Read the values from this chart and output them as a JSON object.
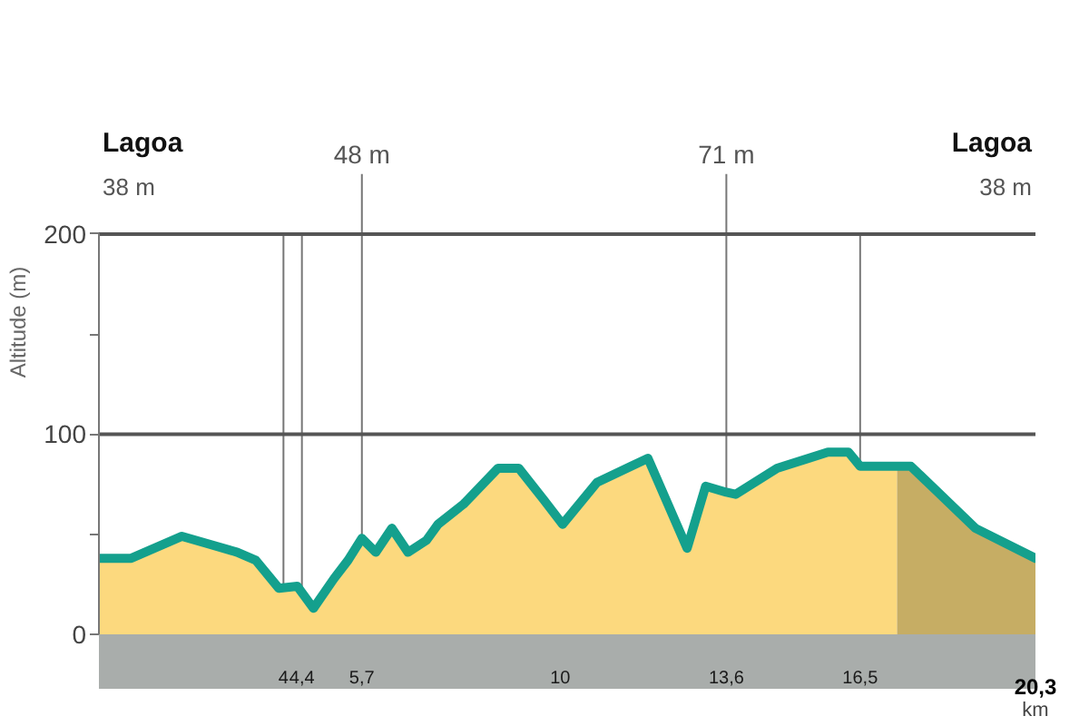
{
  "chart_data": {
    "type": "area",
    "ylabel": "Altitude (m)",
    "xlabel": "km",
    "xlim": [
      0,
      20.3
    ],
    "xticks": [
      4,
      {
        "value": 4.4,
        "label": "4,4"
      },
      {
        "value": 5.7,
        "label": "5,7"
      },
      10,
      {
        "value": 13.6,
        "label": "13,6"
      },
      {
        "value": 16.5,
        "label": "16,5"
      },
      {
        "value": 20.3,
        "label": "20,3"
      }
    ],
    "ylim": [
      0,
      200
    ],
    "yticks": [
      0,
      {
        "value": 50,
        "label": null
      },
      100,
      {
        "value": 150,
        "label": null
      },
      200
    ],
    "series": [
      {
        "type": "area",
        "color": "#fcd97e",
        "x": [
          0,
          0.7,
          1.8,
          2.4,
          3.0,
          3.4,
          3.9,
          4.3,
          4.65,
          5.1,
          5.4,
          5.7,
          6.0,
          6.35,
          6.7,
          7.1,
          7.35,
          7.9,
          8.65,
          9.1,
          9.65,
          10.05,
          10.8,
          11.9,
          12.75,
          13.15,
          13.6,
          13.8,
          14.7,
          15.8,
          16.25,
          16.5,
          17.3
        ],
        "values": [
          38,
          38,
          49,
          45,
          41,
          37,
          23,
          24,
          13,
          28,
          37,
          48,
          41,
          53,
          41,
          47,
          55,
          65,
          83,
          83,
          67,
          55,
          76,
          88,
          43,
          74,
          71,
          70,
          83,
          91,
          91,
          84,
          84
        ]
      },
      {
        "type": "area",
        "color": "#c6ad64",
        "x": [
          17.3,
          17.6,
          19.0,
          20.3
        ],
        "values": [
          84,
          84,
          53,
          38
        ]
      },
      {
        "type": "line",
        "color": "#14a08d",
        "x": [
          0,
          0.7,
          1.8,
          2.4,
          3.0,
          3.4,
          3.9,
          4.3,
          4.65,
          5.1,
          5.4,
          5.7,
          6.0,
          6.35,
          6.7,
          7.1,
          7.35,
          7.9,
          8.65,
          9.1,
          9.65,
          10.05,
          10.8,
          11.9,
          12.75,
          13.15,
          13.6,
          13.8,
          14.7,
          15.8,
          16.25,
          16.5,
          17.6,
          19.0,
          20.3
        ],
        "values": [
          38,
          38,
          49,
          45,
          41,
          37,
          23,
          24,
          13,
          28,
          37,
          48,
          41,
          53,
          41,
          47,
          55,
          65,
          83,
          83,
          67,
          55,
          76,
          88,
          43,
          74,
          71,
          70,
          83,
          91,
          91,
          84,
          84,
          53,
          38
        ]
      }
    ],
    "ref_lines": [
      {
        "axis": "y",
        "value": 100,
        "color": "#555555"
      },
      {
        "axis": "y",
        "value": 200,
        "color": "#555555"
      },
      {
        "axis": "x",
        "value": 4
      },
      {
        "axis": "x",
        "value": 4.4
      },
      {
        "axis": "x",
        "value": 5.7,
        "label": "48 m"
      },
      {
        "axis": "x",
        "value": 13.6,
        "label": "71 m"
      },
      {
        "axis": "x",
        "value": 16.5
      }
    ],
    "annotations": [
      "Lagoa",
      "38 m",
      "Lagoa",
      "38 m"
    ]
  }
}
